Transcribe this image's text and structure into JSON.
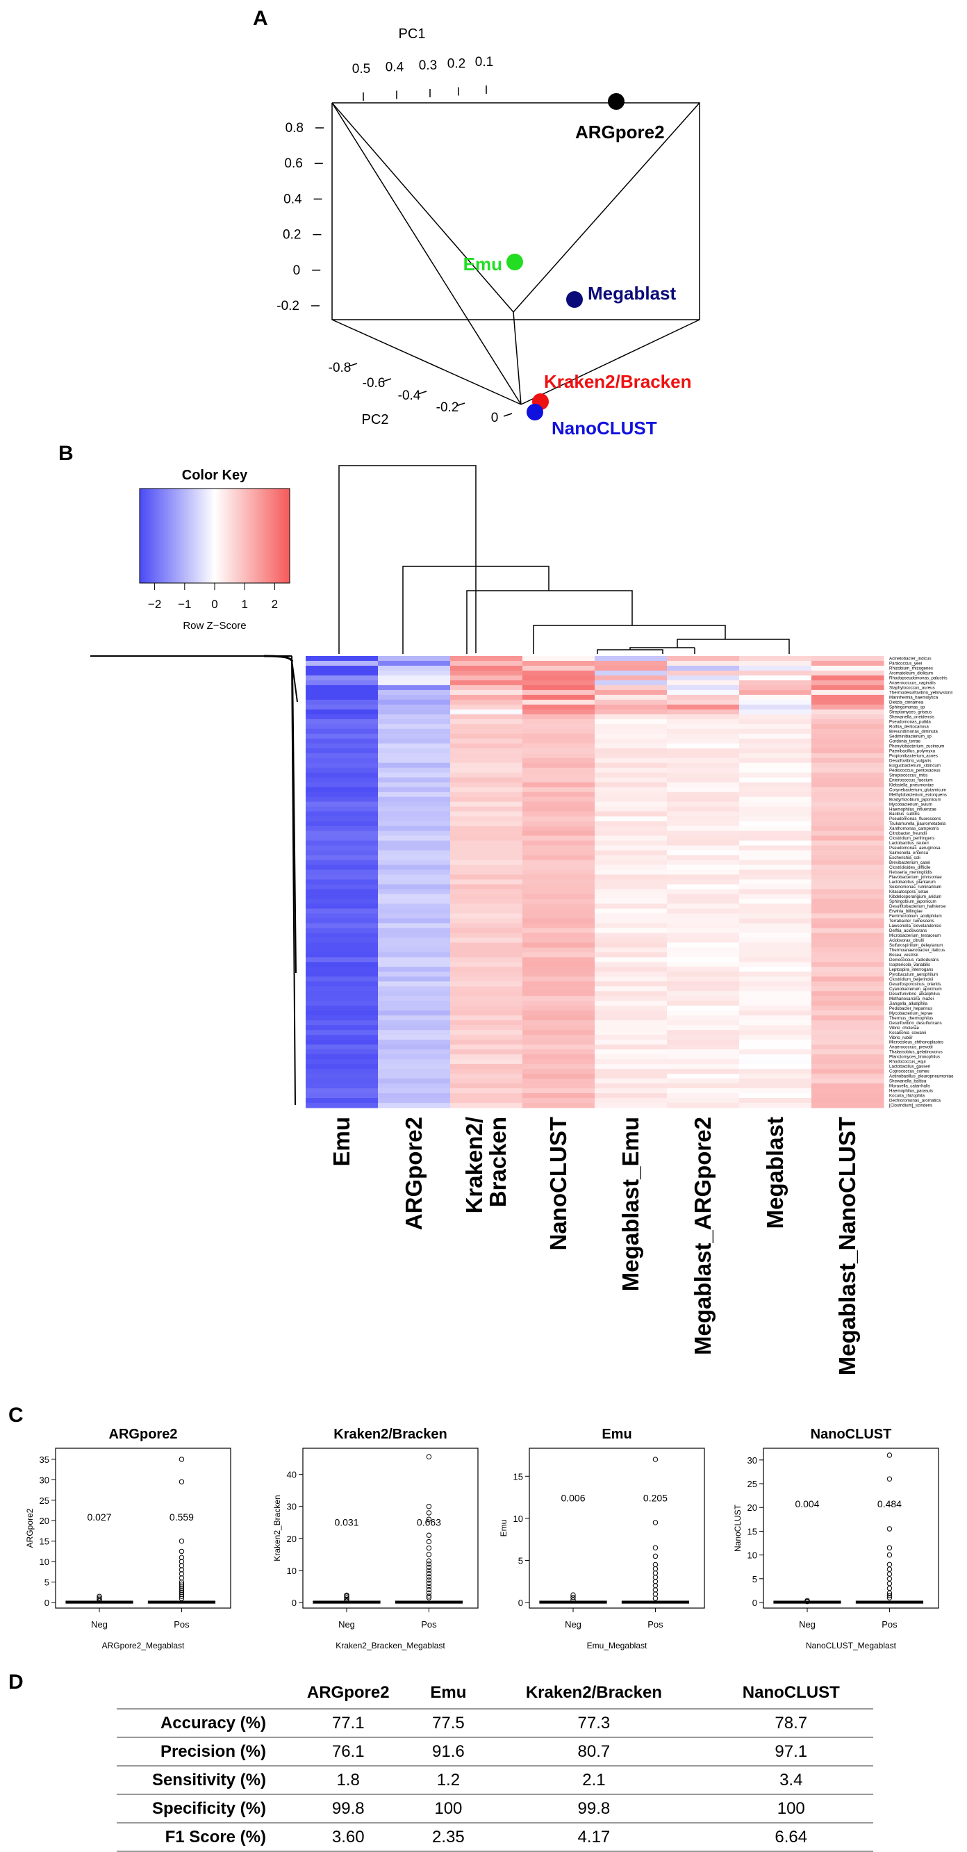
{
  "panel_labels": {
    "a": "A",
    "b": "B",
    "c": "C",
    "d": "D"
  },
  "colors": {
    "emu": "#22dd22",
    "argpore2": "#000000",
    "megablast": "#0a0a78",
    "kraken": "#ee1111",
    "nanoclust": "#1111dd",
    "heat_low": "#4a4af5",
    "heat_mid": "#ffffff",
    "heat_high": "#f55a5a"
  },
  "chart_data": [
    {
      "type": "scatter3d",
      "panel": "A",
      "axes": {
        "pc1": {
          "label": "PC1",
          "ticks": [
            "0.5",
            "0.4",
            "0.3",
            "0.2",
            "0.1"
          ]
        },
        "pc2": {
          "label": "PC2",
          "ticks": [
            "-0.8",
            "-0.6",
            "-0.4",
            "-0.2",
            "0"
          ]
        },
        "pc3": {
          "label": "",
          "ticks": [
            "0.8",
            "0.6",
            "0.4",
            "0.2",
            "0",
            "-0.2"
          ]
        }
      },
      "points": [
        {
          "name": "ARGpore2",
          "pc3": 0.88
        },
        {
          "name": "Emu",
          "pc3": 0.2
        },
        {
          "name": "Megablast",
          "pc3": 0.05
        },
        {
          "name": "Kraken2/Bracken",
          "pc3": -0.25
        },
        {
          "name": "NanoCLUST",
          "pc3": -0.29
        }
      ]
    },
    {
      "type": "heatmap",
      "panel": "B",
      "color_key": {
        "title": "Color Key",
        "label": "Row Z−Score",
        "ticks": [
          "−2",
          "−1",
          "0",
          "1",
          "2"
        ],
        "range": [
          -2.5,
          2.5
        ]
      },
      "columns": [
        "Emu",
        "ARGpore2",
        "Kraken2/\nBracken",
        "NanoCLUST",
        "Megablast_Emu",
        "Megablast_ARGpore2",
        "Megablast",
        "Megablast_NanoCLUST"
      ],
      "column_mean_z": [
        -2.2,
        -0.8,
        0.7,
        1.0,
        0.3,
        0.25,
        0.2,
        0.9
      ],
      "row_labels": [
        "Acinetobacter_indicus",
        "Paracoccus_yeei",
        "Rhizobium_rhizogenes",
        "Aromatoleum_diolicum",
        "Rhodopseudomonas_palustris",
        "Anaerococcus_vaginalis",
        "Staphylococcus_aureus",
        "Thermodesulfovibrio_yellowstonii",
        "Mannheimia_haemolytica",
        "Dietzia_cinnamea",
        "Sphingomonas_sp",
        "Streptomyces_griseus",
        "Shewanella_oneidensis",
        "Pseudomonas_putida",
        "Rothia_dentocariosa",
        "Brevundimonas_diminuta",
        "Sediminibacterium_sp",
        "Gordonia_terrae",
        "Phenylobacterium_zucineum",
        "Paenibacillus_polymyxa",
        "Propionibacterium_acnes",
        "Desulfovibrio_vulgaris",
        "Exiguobacterium_sibiricum",
        "Pediococcus_pentosaceus",
        "Streptococcus_mitis",
        "Enterococcus_faecium",
        "Klebsiella_pneumoniae",
        "Corynebacterium_glutamicum",
        "Methylobacterium_extorquens",
        "Bradyrhizobium_japonicum",
        "Mycobacterium_avium",
        "Haemophilus_influenzae",
        "Bacillus_subtilis",
        "Pseudomonas_fluorescens",
        "Tsukamurella_paurometabola",
        "Xanthomonas_campestris",
        "Citrobacter_freundii",
        "Clostridium_perfringens",
        "Lactobacillus_reuteri",
        "Pseudomonas_aeruginosa",
        "Salmonella_enterica",
        "Escherichia_coli",
        "Brevibacterium_casei",
        "Clostridioides_difficile",
        "Neisseria_meningitidis",
        "Flavobacterium_johnsoniae",
        "Lactobacillus_plantarum",
        "Selenomonas_ruminantium",
        "Kitasatospora_setae",
        "Kibdelosporangium_aridum",
        "Sphingobium_japonicum",
        "Desulfitobacterium_hafniense",
        "Erwinia_billingiae",
        "Ferrimicrobium_acidiphilum",
        "Terrabacter_tumescens",
        "Lawsonella_clevelandensis",
        "Delftia_acidovorans",
        "Microbacterium_testaceum",
        "Acidovorax_citrulli",
        "Sulfurospirillum_deleyianum",
        "Thermoanaerobacter_italicus",
        "Bosea_vestrisii",
        "Deinococcus_radiodurans",
        "Isoptericola_variabilis",
        "Leptospira_interrogans",
        "Pyrobaculum_aerophilum",
        "Clostridium_beijerinckii",
        "Desulfosporosinus_orientis",
        "Cyanobacterium_aponinum",
        "Desulfurivibrio_alkaliphilus",
        "Methanosarcina_mazei",
        "Jiangella_alkaliphila",
        "Pedobacter_heparinus",
        "Mycobacterium_leprae",
        "Thermus_thermophilus",
        "Desulfovibrio_desulfuricans",
        "Vibrio_cholerae",
        "Kosakonia_cowanii",
        "Vibrio_ruber",
        "Microcoleus_chthonoplastes",
        "Anaerococcus_prevotii",
        "Thalassobius_gelatinovorus",
        "Planctomyces_limnophilus",
        "Rhodococcus_equi",
        "Lactobacillus_gasseri",
        "Coprococcus_comes",
        "Actinobacillus_pleuropneumoniae",
        "Shewanella_baltica",
        "Moraxella_catarrhalis",
        "Haemophilus_parasuis",
        "Kocuria_rhizophila",
        "Dechloromonas_aromatica",
        "[Clostridium]_scindens"
      ]
    },
    {
      "type": "box",
      "panel": "C",
      "plots": [
        {
          "title": "ARGpore2",
          "ylabel": "ARGpore2",
          "xlabel": "ARGpore2_Megablast",
          "categories": [
            "Neg",
            "Pos"
          ],
          "ylim": [
            0,
            36
          ],
          "yticks": [
            0,
            5,
            10,
            15,
            20,
            25,
            30,
            35
          ],
          "means": [
            "0.027",
            "0.559"
          ],
          "annot_y": 20,
          "outliers": [
            [
              0.4,
              0.8,
              1.1,
              1.5
            ],
            [
              1,
              1.5,
              2,
              2.5,
              3,
              3.5,
              4,
              4.5,
              5,
              6,
              7,
              8,
              9,
              10,
              11,
              12.5,
              15,
              29.5,
              35
            ]
          ]
        },
        {
          "title": "Kraken2/Bracken",
          "ylabel": "Kraken2_Bracken",
          "xlabel": "Kraken2_Bracken_Megablast",
          "categories": [
            "Neg",
            "Pos"
          ],
          "ylim": [
            0,
            46
          ],
          "yticks": [
            0,
            10,
            20,
            30,
            40
          ],
          "means": [
            "0.031",
            "0.663"
          ],
          "annot_y": 24,
          "outliers": [
            [
              0.5,
              1,
              1.5,
              2,
              2.3
            ],
            [
              1.5,
              2,
              3,
              4,
              5,
              6,
              7,
              8,
              9,
              10,
              11,
              12,
              13,
              15,
              17,
              19,
              21,
              26,
              28,
              30,
              45.5
            ]
          ]
        },
        {
          "title": "Emu",
          "ylabel": "Emu",
          "xlabel": "Emu_Megablast",
          "categories": [
            "Neg",
            "Pos"
          ],
          "ylim": [
            0,
            17.5
          ],
          "yticks": [
            0,
            5,
            10,
            15
          ],
          "means": [
            "0.006",
            "0.205"
          ],
          "annot_y": 12,
          "outliers": [
            [
              0.3,
              0.6,
              0.9
            ],
            [
              0.5,
              1,
              1.5,
              2,
              2.5,
              3,
              3.5,
              4,
              4.5,
              5.5,
              6.5,
              9.5,
              17
            ]
          ]
        },
        {
          "title": "NanoCLUST",
          "ylabel": "NanoCLUST",
          "xlabel": "NanoCLUST_Megablast",
          "categories": [
            "Neg",
            "Pos"
          ],
          "ylim": [
            0,
            31
          ],
          "yticks": [
            0,
            5,
            10,
            15,
            20,
            25,
            30
          ],
          "means": [
            "0.004",
            "0.484"
          ],
          "annot_y": 20,
          "outliers": [
            [
              0.2,
              0.4
            ],
            [
              1,
              1.5,
              2,
              3,
              4,
              5,
              6,
              7,
              8,
              10,
              11.5,
              15.5,
              26,
              31
            ]
          ]
        }
      ]
    },
    {
      "type": "table",
      "panel": "D",
      "columns": [
        "ARGpore2",
        "Emu",
        "Kraken2/Bracken",
        "NanoCLUST"
      ],
      "rows": [
        {
          "label": "Accuracy (%)",
          "values": [
            "77.1",
            "77.5",
            "77.3",
            "78.7"
          ]
        },
        {
          "label": "Precision (%)",
          "values": [
            "76.1",
            "91.6",
            "80.7",
            "97.1"
          ]
        },
        {
          "label": "Sensitivity (%)",
          "values": [
            "1.8",
            "1.2",
            "2.1",
            "3.4"
          ]
        },
        {
          "label": "Specificity (%)",
          "values": [
            "99.8",
            "100",
            "99.8",
            "100"
          ]
        },
        {
          "label": "F1 Score (%)",
          "values": [
            "3.60",
            "2.35",
            "4.17",
            "6.64"
          ]
        }
      ]
    }
  ]
}
